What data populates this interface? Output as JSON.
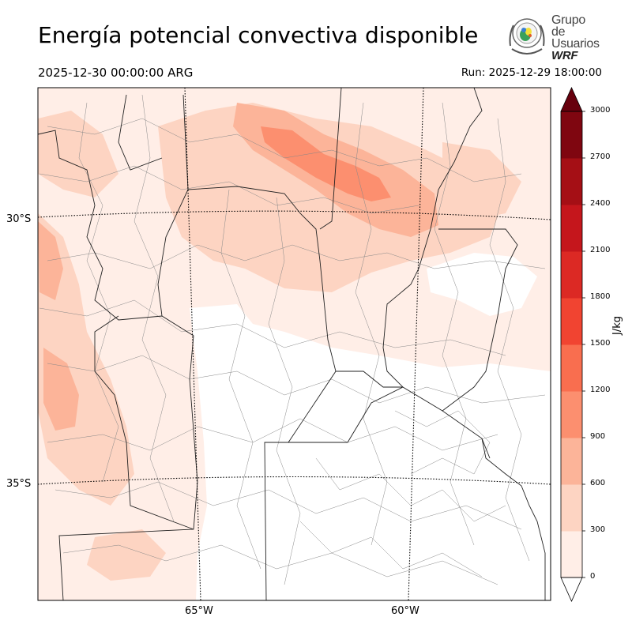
{
  "header": {
    "title": "Energía potencial convectiva disponible",
    "valid_time": "2025-12-30 00:00:00 ARG",
    "run": "Run: 2025-12-29 18:00:00"
  },
  "logo": {
    "line1": "Grupo de",
    "line2": "Usuarios",
    "line3": "WRF"
  },
  "map": {
    "lat_labels": [
      "30°S",
      "35°S"
    ],
    "lon_labels": [
      "65°W",
      "60°W"
    ],
    "lon_range": [
      "68°W",
      "56°W"
    ],
    "lat_range": [
      "26°S",
      "38°S"
    ]
  },
  "colorbar": {
    "unit": "J/kg",
    "levels": [
      0,
      300,
      600,
      900,
      1200,
      1500,
      1800,
      2100,
      2400,
      2700,
      3000
    ],
    "colors": [
      "#ffeee7",
      "#fdd4c2",
      "#fcb499",
      "#fc8f6f",
      "#f96e4f",
      "#f14431",
      "#dc2924",
      "#c5161c",
      "#a50f15",
      "#7f0610"
    ],
    "extend": "both",
    "under_color": "#ffffff",
    "over_color": "#67000d"
  }
}
